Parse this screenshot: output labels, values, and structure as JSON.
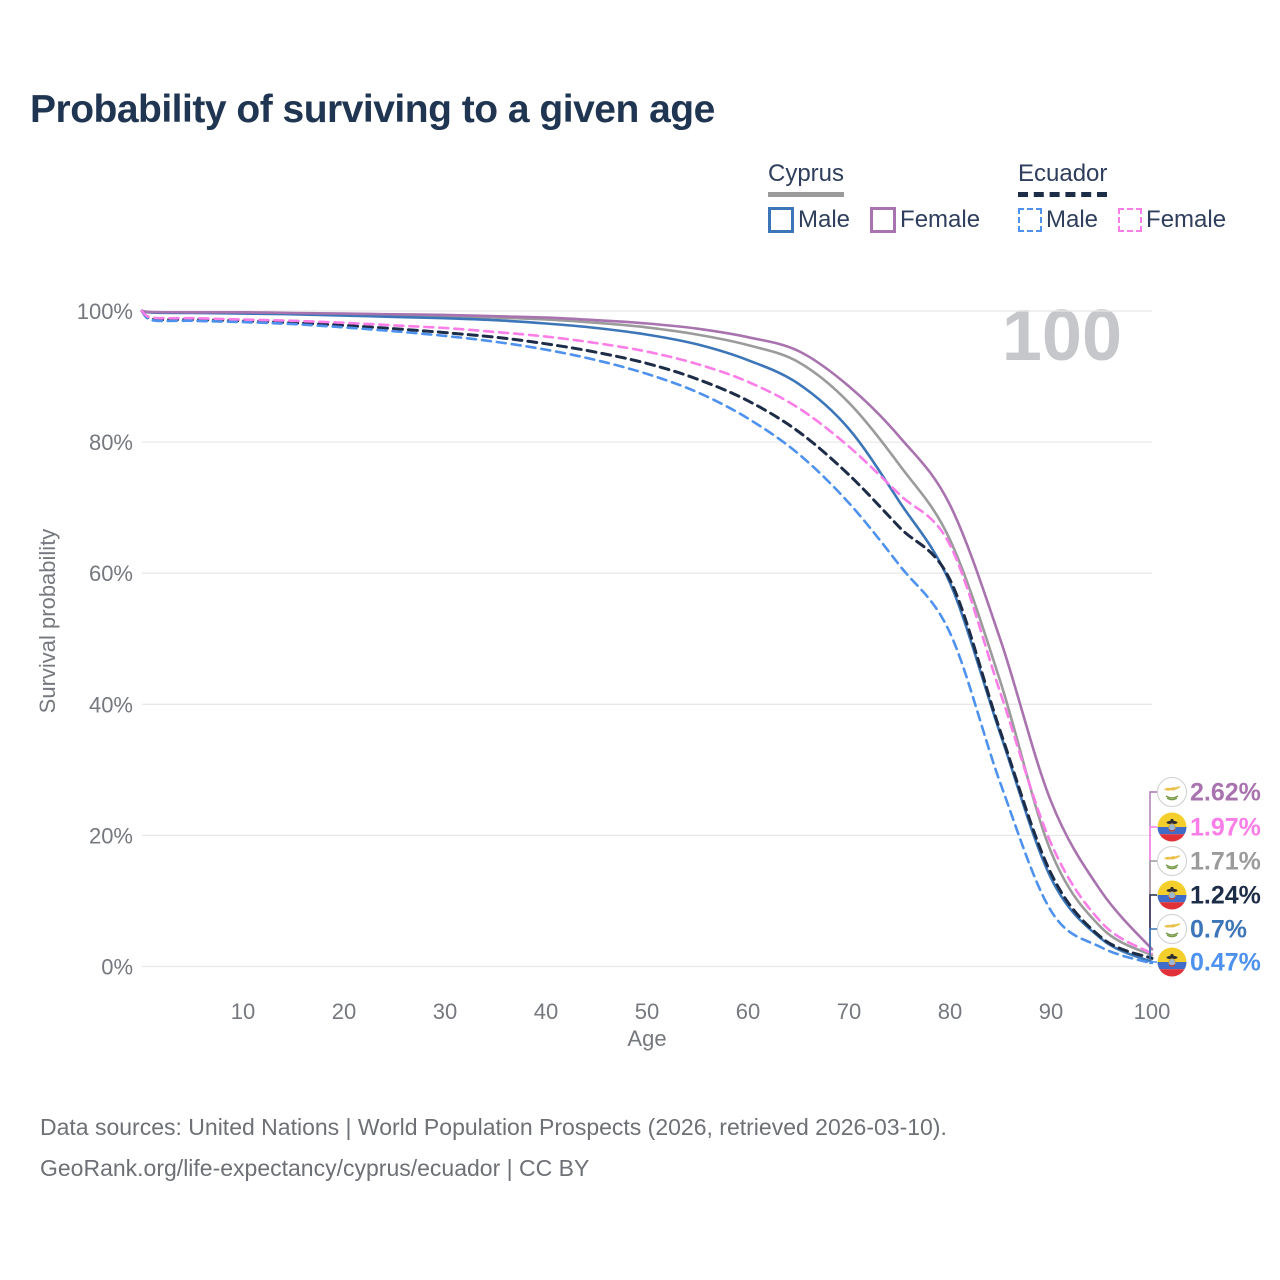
{
  "page": {
    "title": "Probability of surviving to a given age",
    "watermark": "100",
    "footer_line1": "Data sources: United Nations | World Population Prospects (2026, retrieved 2026-03-10).",
    "footer_line2": "GeoRank.org/life-expectancy/cyprus/ecuador | CC BY"
  },
  "legend": {
    "groups": [
      {
        "country": "Cyprus",
        "line_style": "solid",
        "header_underline_color": "#9b9b9b",
        "items": [
          {
            "label": "Male",
            "color": "#3d76b8"
          },
          {
            "label": "Female",
            "color": "#a873ae"
          }
        ]
      },
      {
        "country": "Ecuador",
        "line_style": "dashed",
        "header_underline_color": "#1d2c47",
        "items": [
          {
            "label": "Male",
            "color": "#4f92ee"
          },
          {
            "label": "Female",
            "color": "#fb7de7"
          }
        ]
      }
    ]
  },
  "icons": {
    "flag_cyprus": "cyprus-flag-icon",
    "flag_ecuador": "ecuador-flag-icon"
  },
  "colors": {
    "title_text": "#203552",
    "axis_text": "#75787e",
    "gridline": "#e8e8e8",
    "watermark": "#c5c7ca",
    "footer_text": "#6d7075",
    "cyprus_male": "#3d76b8",
    "cyprus_female": "#a873ae",
    "cyprus_both": "#9b9b9b",
    "ecuador_male": "#4f92ee",
    "ecuador_female": "#fb7de7",
    "ecuador_both": "#1d2c47"
  },
  "chart_data": {
    "type": "line",
    "title": "Probability of surviving to a given age",
    "xlabel": "Age",
    "ylabel": "Survival probability",
    "xlim": [
      0,
      100
    ],
    "ylim": [
      0,
      100
    ],
    "grid": "horizontal",
    "legend_position": "top-right",
    "x_ticks": [
      10,
      20,
      30,
      40,
      50,
      60,
      70,
      80,
      90,
      100
    ],
    "y_ticks": [
      {
        "value": 0,
        "label": "0%"
      },
      {
        "value": 20,
        "label": "20%"
      },
      {
        "value": 40,
        "label": "40%"
      },
      {
        "value": 60,
        "label": "60%"
      },
      {
        "value": 80,
        "label": "80%"
      },
      {
        "value": 100,
        "label": "100%"
      }
    ],
    "x": [
      0,
      1,
      5,
      10,
      15,
      20,
      25,
      30,
      35,
      40,
      45,
      50,
      55,
      60,
      65,
      70,
      75,
      80,
      85,
      90,
      95,
      100
    ],
    "series": [
      {
        "name": "Cyprus (both sexes)",
        "country": "Cyprus",
        "sex": "Both",
        "style": "solid",
        "color": "#9b9b9b",
        "width": 2.6,
        "end_label": "1.71%",
        "flag": "cyprus",
        "values": [
          100,
          99.8,
          99.75,
          99.7,
          99.6,
          99.5,
          99.4,
          99.2,
          99.0,
          98.7,
          98.2,
          97.5,
          96.4,
          94.8,
          92.2,
          86.0,
          76.5,
          65.1,
          43.4,
          17.5,
          5.9,
          1.71
        ]
      },
      {
        "name": "Cyprus Male",
        "country": "Cyprus",
        "sex": "Male",
        "style": "solid",
        "color": "#3d76b8",
        "width": 2.6,
        "end_label": "0.7%",
        "flag": "cyprus",
        "values": [
          100,
          99.75,
          99.7,
          99.6,
          99.5,
          99.3,
          99.1,
          98.9,
          98.6,
          98.1,
          97.4,
          96.4,
          94.9,
          92.5,
          88.9,
          82.0,
          70.9,
          58.5,
          35.4,
          13.5,
          4.2,
          0.7
        ]
      },
      {
        "name": "Cyprus Female",
        "country": "Cyprus",
        "sex": "Female",
        "style": "solid",
        "color": "#a873ae",
        "width": 2.6,
        "end_label": "2.62%",
        "flag": "cyprus",
        "values": [
          100,
          99.85,
          99.8,
          99.8,
          99.7,
          99.6,
          99.5,
          99.4,
          99.2,
          99.0,
          98.6,
          98.1,
          97.3,
          96.0,
          93.9,
          88.5,
          80.8,
          70.4,
          49.8,
          25.2,
          11.4,
          2.62
        ]
      },
      {
        "name": "Ecuador (both sexes)",
        "country": "Ecuador",
        "sex": "Both",
        "style": "dashed",
        "color": "#1d2c47",
        "width": 3,
        "end_label": "1.24%",
        "flag": "ecuador",
        "values": [
          100,
          98.8,
          98.7,
          98.5,
          98.2,
          97.8,
          97.3,
          96.7,
          96.0,
          95.0,
          93.7,
          92.0,
          89.6,
          86.3,
          81.6,
          75.0,
          67.0,
          59.0,
          35.8,
          14.2,
          4.4,
          1.24
        ]
      },
      {
        "name": "Ecuador Male",
        "country": "Ecuador",
        "sex": "Male",
        "style": "dashed",
        "color": "#4f92ee",
        "width": 2.6,
        "end_label": "0.47%",
        "flag": "ecuador",
        "values": [
          100,
          98.6,
          98.5,
          98.3,
          98.0,
          97.5,
          96.9,
          96.2,
          95.3,
          94.1,
          92.5,
          90.4,
          87.6,
          83.6,
          78.2,
          70.7,
          61.2,
          50.9,
          27.9,
          8.5,
          2.9,
          0.47
        ]
      },
      {
        "name": "Ecuador Female",
        "country": "Ecuador",
        "sex": "Female",
        "style": "dashed",
        "color": "#fb7de7",
        "width": 2.6,
        "end_label": "1.97%",
        "flag": "ecuador",
        "values": [
          100,
          99.0,
          98.9,
          98.7,
          98.5,
          98.2,
          97.8,
          97.4,
          96.8,
          96.1,
          95.1,
          93.8,
          91.9,
          89.2,
          85.2,
          79.3,
          72.0,
          64.3,
          41.7,
          18.8,
          6.7,
          1.97
        ]
      }
    ]
  }
}
